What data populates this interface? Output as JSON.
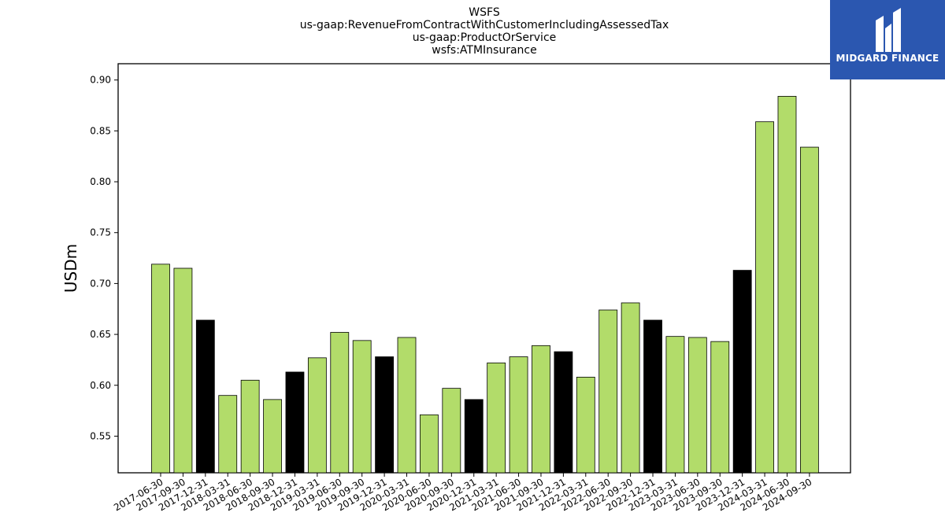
{
  "brand": {
    "name": "MIDGARD FINANCE",
    "bg_color": "#2b57b0"
  },
  "chart_data": {
    "type": "bar",
    "title_lines": [
      "WSFS",
      "us-gaap:RevenueFromContractWithCustomerIncludingAssessedTax",
      "us-gaap:ProductOrService",
      "wsfs:ATMInsurance"
    ],
    "xlabel": "",
    "ylabel": "USDm",
    "ylim": [
      0.514,
      0.916
    ],
    "yticks": [
      0.55,
      0.6,
      0.65,
      0.7,
      0.75,
      0.8,
      0.85,
      0.9
    ],
    "grid": false,
    "colors": {
      "default": "#b2dc6a",
      "q4": "#000000",
      "edge": "#000000"
    },
    "categories": [
      "2017-06-30",
      "2017-09-30",
      "2017-12-31",
      "2018-03-31",
      "2018-06-30",
      "2018-09-30",
      "2018-12-31",
      "2019-03-31",
      "2019-06-30",
      "2019-09-30",
      "2019-12-31",
      "2020-03-31",
      "2020-06-30",
      "2020-09-30",
      "2020-12-31",
      "2021-03-31",
      "2021-06-30",
      "2021-09-30",
      "2021-12-31",
      "2022-03-31",
      "2022-06-30",
      "2022-09-30",
      "2022-12-31",
      "2023-03-31",
      "2023-06-30",
      "2023-09-30",
      "2023-12-31",
      "2024-03-31",
      "2024-06-30",
      "2024-09-30"
    ],
    "values": [
      0.719,
      0.715,
      0.664,
      0.59,
      0.605,
      0.586,
      0.613,
      0.627,
      0.652,
      0.644,
      0.628,
      0.647,
      0.571,
      0.597,
      0.586,
      0.622,
      0.628,
      0.639,
      0.633,
      0.608,
      0.674,
      0.681,
      0.664,
      0.648,
      0.647,
      0.643,
      0.713,
      0.859,
      0.884,
      0.834
    ]
  }
}
